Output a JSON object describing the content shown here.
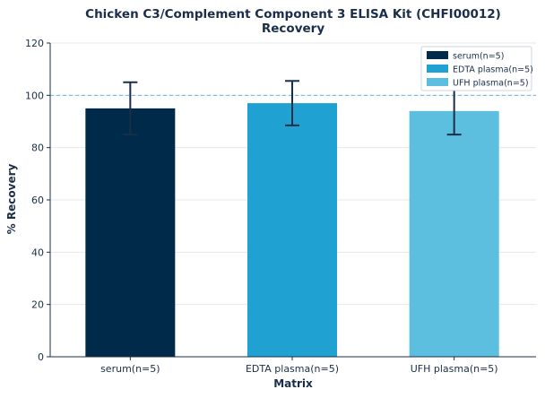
{
  "chart_data": {
    "type": "bar",
    "title": "Chicken C3/Complement Component 3 ELISA Kit (CHFI00012)",
    "subtitle": "Recovery",
    "xlabel": "Matrix",
    "ylabel": "% Recovery",
    "ylim": [
      0,
      120
    ],
    "yticks": [
      0,
      20,
      40,
      60,
      80,
      100,
      120
    ],
    "reference_line": 100,
    "grid": "horizontal",
    "legend_position": "top-right",
    "categories": [
      "serum(n=5)",
      "EDTA plasma(n=5)",
      "UFH plasma(n=5)"
    ],
    "values": [
      95,
      97,
      94
    ],
    "error": [
      10,
      8.5,
      9
    ],
    "colors": [
      "#002a4a",
      "#1fa1d2",
      "#5dbfe0"
    ],
    "axis_color": "#1a2e4a",
    "reference_color": "#63b9dc"
  }
}
